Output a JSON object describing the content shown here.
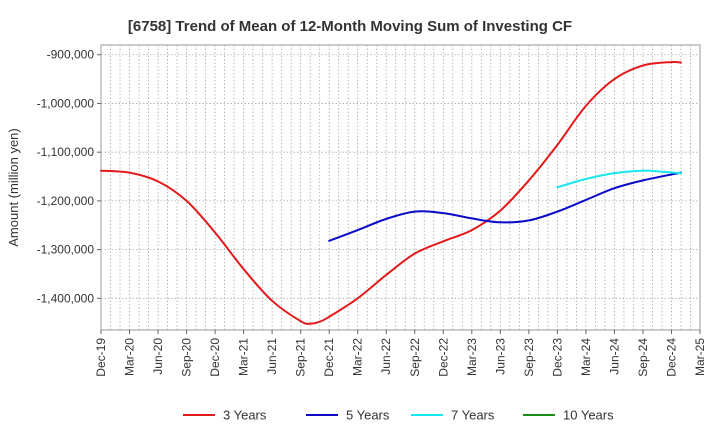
{
  "chart_data": {
    "type": "line",
    "title": "[6758]  Trend of Mean of 12-Month Moving Sum of Investing CF",
    "xlabel": "",
    "ylabel": "Amount (million yen)",
    "ylim": [
      -1465000,
      -880000
    ],
    "yticks": [
      -900000,
      -1000000,
      -1100000,
      -1200000,
      -1300000,
      -1400000
    ],
    "ytick_labels": [
      "-900,000",
      "-1,000,000",
      "-1,100,000",
      "-1,200,000",
      "-1,300,000",
      "-1,400,000"
    ],
    "x_start": "Dec-19",
    "x_months": 63,
    "xtick_labels": [
      "Dec-19",
      "Mar-20",
      "Jun-20",
      "Sep-20",
      "Dec-20",
      "Mar-21",
      "Jun-21",
      "Sep-21",
      "Dec-21",
      "Mar-22",
      "Jun-22",
      "Sep-22",
      "Dec-22",
      "Mar-23",
      "Jun-23",
      "Sep-23",
      "Dec-23",
      "Mar-24",
      "Jun-24",
      "Sep-24",
      "Dec-24",
      "Mar-25"
    ],
    "grid": true,
    "legend_position": "bottom",
    "series": [
      {
        "name": "3 Years",
        "color": "#e31a1c",
        "points": [
          [
            0,
            -1138000
          ],
          [
            3,
            -1142000
          ],
          [
            6,
            -1160000
          ],
          [
            9,
            -1200000
          ],
          [
            12,
            -1265000
          ],
          [
            15,
            -1340000
          ],
          [
            18,
            -1405000
          ],
          [
            21,
            -1447000
          ],
          [
            22,
            -1452000
          ],
          [
            23,
            -1448000
          ],
          [
            24,
            -1438000
          ],
          [
            27,
            -1400000
          ],
          [
            30,
            -1352000
          ],
          [
            33,
            -1308000
          ],
          [
            36,
            -1283000
          ],
          [
            39,
            -1260000
          ],
          [
            42,
            -1220000
          ],
          [
            45,
            -1158000
          ],
          [
            48,
            -1085000
          ],
          [
            51,
            -1005000
          ],
          [
            54,
            -950000
          ],
          [
            57,
            -922000
          ],
          [
            60,
            -915000
          ],
          [
            61,
            -916000
          ]
        ]
      },
      {
        "name": "5 Years",
        "color": "#0a0ac8",
        "points": [
          [
            24,
            -1282000
          ],
          [
            27,
            -1260000
          ],
          [
            30,
            -1237000
          ],
          [
            33,
            -1222000
          ],
          [
            36,
            -1225000
          ],
          [
            39,
            -1236000
          ],
          [
            42,
            -1244000
          ],
          [
            45,
            -1240000
          ],
          [
            48,
            -1222000
          ],
          [
            51,
            -1198000
          ],
          [
            54,
            -1174000
          ],
          [
            57,
            -1158000
          ],
          [
            61,
            -1142000
          ]
        ]
      },
      {
        "name": "7 Years",
        "color": "#19e6ef",
        "points": [
          [
            48,
            -1172000
          ],
          [
            51,
            -1155000
          ],
          [
            54,
            -1143000
          ],
          [
            57,
            -1138000
          ],
          [
            59,
            -1140000
          ],
          [
            61,
            -1143000
          ]
        ]
      },
      {
        "name": "10 Years",
        "color": "#1a8a1a",
        "points": []
      }
    ]
  }
}
